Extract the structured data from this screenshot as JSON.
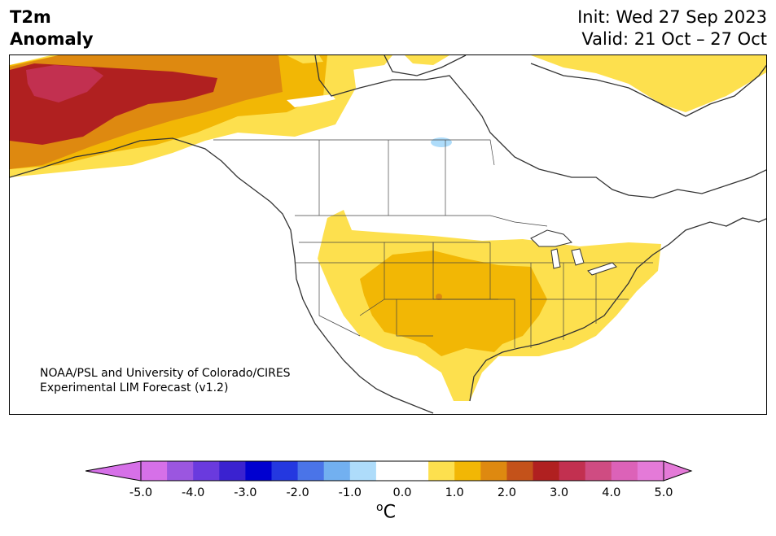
{
  "header": {
    "variable": "T2m",
    "subtitle": "Anomaly",
    "init": "Init: Wed 27 Sep 2023",
    "valid": "Valid: 21 Oct – 27 Oct"
  },
  "credit": {
    "line1": "NOAA/PSL and University of Colorado/CIRES",
    "line2": "Experimental LIM Forecast (v1.2)"
  },
  "colorbar": {
    "unit_base": "C",
    "unit_sup": "o",
    "tick_labels": [
      "-5.0",
      "-4.0",
      "-3.0",
      "-2.0",
      "-1.0",
      "0.0",
      "1.0",
      "2.0",
      "3.0",
      "4.0",
      "5.0"
    ],
    "colors": [
      "#d670e8",
      "#9b56e0",
      "#6a3ade",
      "#3a22d0",
      "#0000d0",
      "#2438e0",
      "#4a74e8",
      "#72b0f0",
      "#aedcfa",
      "#ffffff",
      "#ffffff",
      "#fde04e",
      "#f2b705",
      "#de8910",
      "#c4521a",
      "#b02020",
      "#c23050",
      "#cf4c82",
      "#dc62b8",
      "#e47ad8"
    ],
    "under_color": "#d670e8",
    "over_color": "#e47ad8"
  },
  "map": {
    "region": "North America",
    "anomaly_levels": {
      "yellow": "#fde04e",
      "gold": "#f2b705",
      "orange": "#de8910",
      "red": "#b02020",
      "crimson": "#c23050",
      "light_blue": "#aedcfa"
    }
  }
}
